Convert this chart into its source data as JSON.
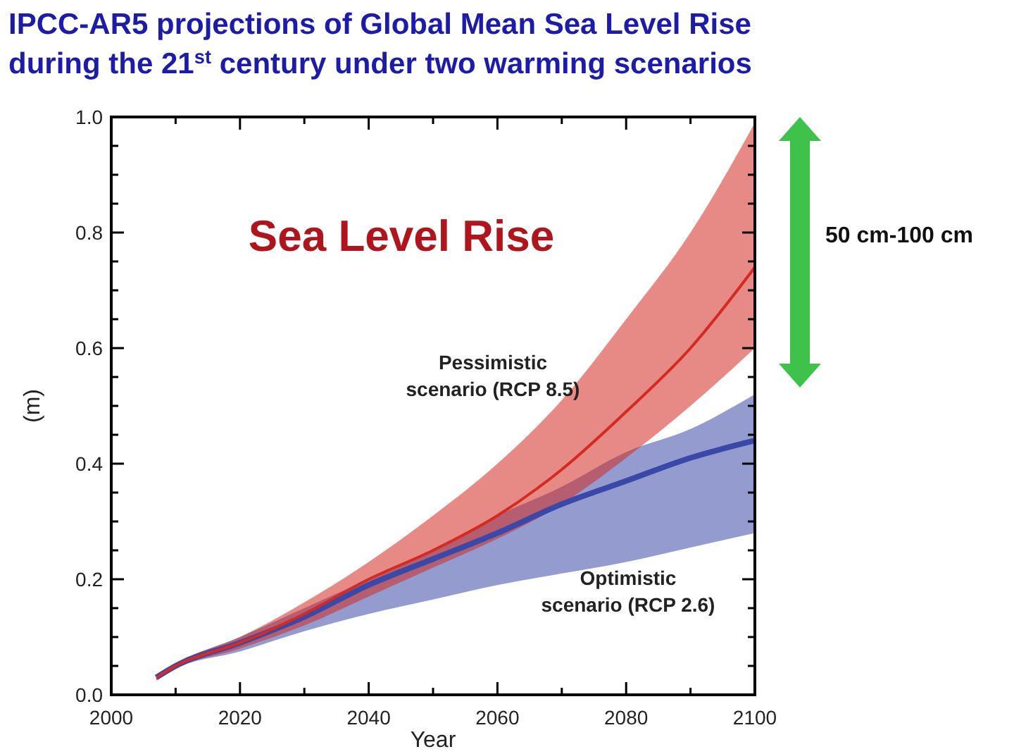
{
  "chart_data": {
    "type": "line",
    "title": "IPCC-AR5 projections of Global Mean Sea Level Rise",
    "subtitle": "during the 21$^{st}$ century under two warming scenarios",
    "xlabel": "Year",
    "ylabel": "(m)",
    "annotations": [
      "Sea Level Rise",
      "50 cm-100 cm"
    ],
    "xlim": [
      2000,
      2100
    ],
    "ylim": [
      0,
      1
    ],
    "xticks": [
      2000,
      {
        "value": 2010,
        "label": null
      },
      2020,
      {
        "value": 2030,
        "label": null
      },
      2040,
      {
        "value": 2050,
        "label": null
      },
      2060,
      {
        "value": 2070,
        "label": null
      },
      2080,
      {
        "value": 2090,
        "label": null
      },
      2100
    ],
    "yticks": [
      {
        "value": 0,
        "label": "0.0"
      },
      {
        "value": 0.05,
        "label": null
      },
      {
        "value": 0.1,
        "label": null
      },
      {
        "value": 0.15,
        "label": null
      },
      {
        "value": 0.2,
        "label": "0.2"
      },
      {
        "value": 0.25,
        "label": null
      },
      {
        "value": 0.3,
        "label": null
      },
      {
        "value": 0.35,
        "label": null
      },
      {
        "value": 0.4,
        "label": "0.4"
      },
      {
        "value": 0.45,
        "label": null
      },
      {
        "value": 0.5,
        "label": null
      },
      {
        "value": 0.55,
        "label": null
      },
      {
        "value": 0.6,
        "label": "0.6"
      },
      {
        "value": 0.65,
        "label": null
      },
      {
        "value": 0.7,
        "label": null
      },
      {
        "value": 0.75,
        "label": null
      },
      {
        "value": 0.8,
        "label": "0.8"
      },
      {
        "value": 0.85,
        "label": null
      },
      {
        "value": 0.9,
        "label": null
      },
      {
        "value": 0.95,
        "label": null
      },
      {
        "value": 1,
        "label": "1.0"
      }
    ],
    "x": [
      2007,
      2010,
      2020,
      2030,
      2040,
      2050,
      2060,
      2070,
      2080,
      2090,
      2100
    ],
    "grid": false,
    "line_style": "solid",
    "series": [
      {
        "name": "Optimistic scenario (RCP  2.6)",
        "color": "#3a48a8",
        "values": [
          0.03,
          0.05,
          0.09,
          0.135,
          0.19,
          0.235,
          0.28,
          0.33,
          0.37,
          0.41,
          0.44
        ],
        "lower": [
          0.025,
          0.045,
          0.075,
          0.11,
          0.14,
          0.165,
          0.19,
          0.21,
          0.23,
          0.255,
          0.28
        ],
        "upper": [
          0.035,
          0.055,
          0.1,
          0.15,
          0.2,
          0.25,
          0.31,
          0.36,
          0.42,
          0.46,
          0.52
        ]
      },
      {
        "name": "Pessimistic scenario (RCP 8.5)",
        "color": "#d42a22",
        "values": [
          0.03,
          0.05,
          0.09,
          0.14,
          0.2,
          0.25,
          0.31,
          0.39,
          0.49,
          0.6,
          0.74
        ],
        "lower": [
          0.025,
          0.045,
          0.08,
          0.12,
          0.17,
          0.22,
          0.27,
          0.33,
          0.41,
          0.5,
          0.6
        ],
        "upper": [
          0.035,
          0.055,
          0.1,
          0.16,
          0.23,
          0.31,
          0.4,
          0.51,
          0.65,
          0.8,
          0.99
        ]
      }
    ]
  }
}
